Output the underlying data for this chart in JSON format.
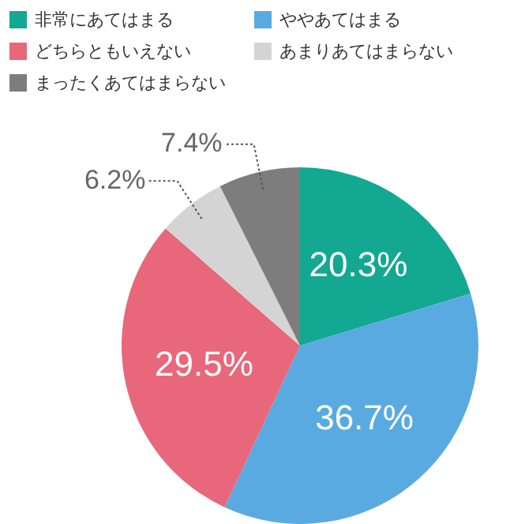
{
  "chart_data": {
    "type": "pie",
    "categories": [
      "非常にあてはまる",
      "ややあてはまる",
      "どちらともいえない",
      "あまりあてはまらない",
      "まったくあてはまらない"
    ],
    "values": [
      20.3,
      36.7,
      29.5,
      6.2,
      7.4
    ],
    "colors": [
      "#12a891",
      "#5aaae2",
      "#e8677b",
      "#d4d4d4",
      "#7d7d7d"
    ],
    "legend": "top",
    "value_labels": [
      "20.3%",
      "36.7%",
      "29.5%",
      "6.2%",
      "7.4%"
    ]
  }
}
